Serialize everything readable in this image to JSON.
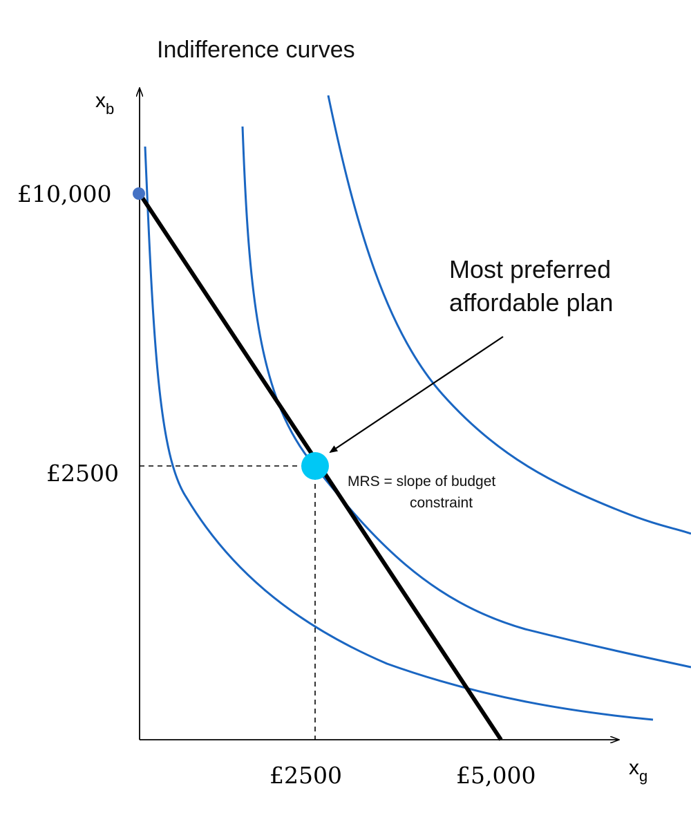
{
  "title": "Indifference curves",
  "axes": {
    "x_label_main": "x",
    "x_label_sub": "g",
    "y_label_main": "x",
    "y_label_sub": "b"
  },
  "ticks": {
    "y_budget_intercept": "£10,000",
    "y_optimum": "£2500",
    "x_optimum": "£2500",
    "x_budget_intercept": "£5,000"
  },
  "annotations": {
    "optimum_line1": "Most preferred",
    "optimum_line2": "affordable plan",
    "mrs_line1": "MRS = slope of budget",
    "mrs_line2": "constraint"
  },
  "colors": {
    "curve": "#1a66c2",
    "budget": "#000000",
    "optimum_point": "#00c8f5",
    "intercept_point": "#4472c4",
    "axis": "#000000"
  }
}
